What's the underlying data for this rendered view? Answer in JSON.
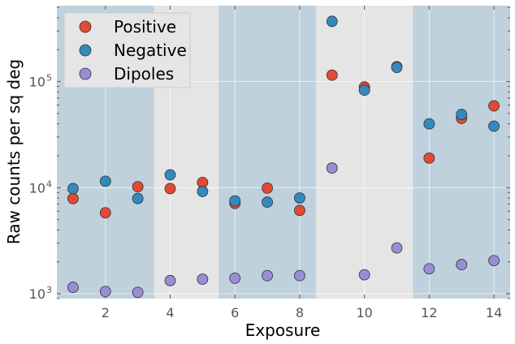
{
  "chart_data": {
    "type": "scatter",
    "title": "",
    "xlabel": "Exposure",
    "ylabel": "Raw counts per sq deg",
    "xlim": [
      0.5,
      14.5
    ],
    "ylim": [
      900,
      520000
    ],
    "yscale": "log",
    "grid": true,
    "legend_position": "top-left",
    "x_ticks": [
      2,
      4,
      6,
      8,
      10,
      12,
      14
    ],
    "x_tick_labels": [
      "2",
      "4",
      "6",
      "8",
      "10",
      "12",
      "14"
    ],
    "y_ticks": [
      1000,
      10000,
      100000
    ],
    "y_tick_bases": [
      "10",
      "10",
      "10"
    ],
    "y_tick_exponents": [
      "3",
      "4",
      "5"
    ],
    "shaded_bands": [
      {
        "x_start": 0.5,
        "x_end": 3.5,
        "color": "#bfd1dc"
      },
      {
        "x_start": 5.5,
        "x_end": 8.5,
        "color": "#bfd1dc"
      },
      {
        "x_start": 11.5,
        "x_end": 14.5,
        "color": "#bfd1dc"
      }
    ],
    "background_color": "#e5e5e5",
    "x": [
      1,
      2,
      3,
      4,
      5,
      6,
      7,
      8,
      9,
      10,
      11,
      12,
      13,
      14
    ],
    "series": [
      {
        "name": "Positive",
        "color": "#e24a33",
        "values": [
          7900,
          5800,
          10200,
          9800,
          11200,
          7100,
          9900,
          6100,
          115000,
          89000,
          138000,
          19000,
          45000,
          59000
        ]
      },
      {
        "name": "Negative",
        "color": "#348abd",
        "values": [
          9800,
          11500,
          7900,
          13200,
          9200,
          7500,
          7300,
          8000,
          370000,
          83000,
          136000,
          40000,
          49000,
          38000
        ]
      },
      {
        "name": "Dipoles",
        "color": "#988ed5",
        "values": [
          1150,
          1050,
          1030,
          1330,
          1370,
          1400,
          1480,
          1480,
          15300,
          1510,
          2700,
          1720,
          1880,
          2050
        ]
      }
    ]
  }
}
